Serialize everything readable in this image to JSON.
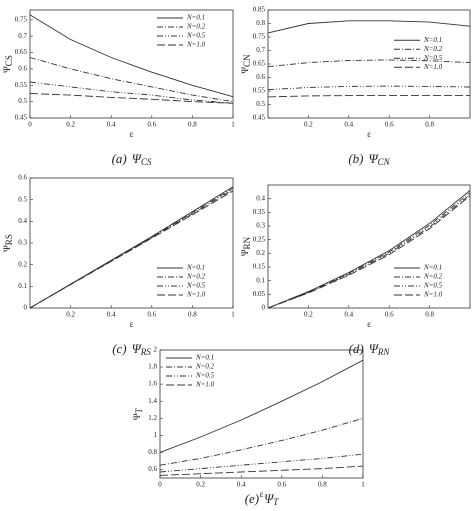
{
  "chart_data": [
    {
      "type": "line",
      "caption": "(a)",
      "caption_symbol": "Ψ",
      "caption_subscript": "CS",
      "xlabel": "ε",
      "ylabel": "Ψ",
      "ylabel_subscript": "CS",
      "x": [
        0,
        0.2,
        0.4,
        0.6,
        0.8,
        1
      ],
      "xlim": [
        0,
        1
      ],
      "xticks": [
        0,
        0.2,
        0.4,
        0.6,
        0.8,
        1
      ],
      "ylim": [
        0.45,
        0.78
      ],
      "yticks": [
        0.45,
        0.5,
        0.55,
        0.6,
        0.65,
        0.7,
        0.75
      ],
      "legend": "upper right",
      "series": [
        {
          "name": "N=0.1",
          "color": "#333333",
          "style": "solid",
          "values": [
            0.765,
            0.69,
            0.635,
            0.59,
            0.55,
            0.515
          ]
        },
        {
          "name": "N=0.2",
          "color": "#333333",
          "style": "dashdot",
          "values": [
            0.635,
            0.6,
            0.57,
            0.545,
            0.52,
            0.5
          ]
        },
        {
          "name": "N=0.5",
          "color": "#333333",
          "style": "dashdotdot",
          "values": [
            0.56,
            0.545,
            0.53,
            0.52,
            0.505,
            0.495
          ]
        },
        {
          "name": "N=1.0",
          "color": "#333333",
          "style": "dashed",
          "values": [
            0.525,
            0.52,
            0.513,
            0.507,
            0.5,
            0.495
          ]
        }
      ]
    },
    {
      "type": "line",
      "caption": "(b)",
      "caption_symbol": "Ψ",
      "caption_subscript": "CN",
      "xlabel": "ε",
      "ylabel": "Ψ",
      "ylabel_subscript": "CN",
      "x": [
        0,
        0.2,
        0.4,
        0.6,
        0.8,
        1
      ],
      "xlim": [
        0,
        1
      ],
      "xticks": [
        0.2,
        0.4,
        0.6,
        0.8
      ],
      "ylim": [
        0.45,
        0.85
      ],
      "yticks": [
        0.45,
        0.5,
        0.55,
        0.6,
        0.65,
        0.7,
        0.75,
        0.8,
        0.85
      ],
      "legend": "center right",
      "series": [
        {
          "name": "N=0.1",
          "color": "#333333",
          "style": "solid",
          "values": [
            0.765,
            0.8,
            0.81,
            0.81,
            0.805,
            0.79
          ]
        },
        {
          "name": "N=0.2",
          "color": "#333333",
          "style": "dashdot",
          "values": [
            0.64,
            0.655,
            0.663,
            0.665,
            0.662,
            0.655
          ]
        },
        {
          "name": "N=0.5",
          "color": "#333333",
          "style": "dashdotdot",
          "values": [
            0.555,
            0.563,
            0.567,
            0.568,
            0.567,
            0.565
          ]
        },
        {
          "name": "N=1.0",
          "color": "#333333",
          "style": "dashed",
          "values": [
            0.528,
            0.532,
            0.533,
            0.533,
            0.533,
            0.533
          ]
        }
      ]
    },
    {
      "type": "line",
      "caption": "(c)",
      "caption_symbol": "Ψ",
      "caption_subscript": "RS",
      "xlabel": "ε",
      "ylabel": "Ψ",
      "ylabel_subscript": "RS",
      "x": [
        0,
        0.2,
        0.4,
        0.6,
        0.8,
        1
      ],
      "xlim": [
        0,
        1
      ],
      "xticks": [
        0.2,
        0.4,
        0.6,
        0.8,
        1
      ],
      "ylim": [
        0,
        0.6
      ],
      "yticks": [
        0,
        0.1,
        0.2,
        0.3,
        0.4,
        0.5,
        0.6
      ],
      "legend": "lower right",
      "series": [
        {
          "name": "N=0.1",
          "color": "#333333",
          "style": "solid",
          "values": [
            0,
            0.11,
            0.22,
            0.33,
            0.445,
            0.56
          ]
        },
        {
          "name": "N=0.2",
          "color": "#333333",
          "style": "dashdot",
          "values": [
            0,
            0.11,
            0.218,
            0.327,
            0.44,
            0.553
          ]
        },
        {
          "name": "N=0.5",
          "color": "#333333",
          "style": "dashdotdot",
          "values": [
            0,
            0.109,
            0.217,
            0.325,
            0.435,
            0.547
          ]
        },
        {
          "name": "N=1.0",
          "color": "#333333",
          "style": "dashed",
          "values": [
            0,
            0.108,
            0.215,
            0.322,
            0.43,
            0.54
          ]
        }
      ]
    },
    {
      "type": "line",
      "caption": "(d)",
      "caption_symbol": "Ψ",
      "caption_subscript": "RN",
      "xlabel": "ε",
      "ylabel": "Ψ",
      "ylabel_subscript": "RN",
      "x": [
        0,
        0.2,
        0.4,
        0.6,
        0.8,
        1
      ],
      "xlim": [
        0,
        1
      ],
      "xticks": [
        0.2,
        0.4,
        0.6,
        0.8
      ],
      "ylim": [
        0,
        0.45
      ],
      "yticks": [
        0,
        0.05,
        0.1,
        0.15,
        0.2,
        0.25,
        0.3,
        0.35,
        0.4
      ],
      "legend": "lower right",
      "series": [
        {
          "name": "N=0.1",
          "color": "#333333",
          "style": "solid",
          "values": [
            0,
            0.06,
            0.13,
            0.21,
            0.31,
            0.43
          ]
        },
        {
          "name": "N=0.2",
          "color": "#333333",
          "style": "dashdot",
          "values": [
            0,
            0.058,
            0.127,
            0.205,
            0.303,
            0.422
          ]
        },
        {
          "name": "N=0.5",
          "color": "#333333",
          "style": "dashdotdot",
          "values": [
            0,
            0.056,
            0.123,
            0.2,
            0.296,
            0.415
          ]
        },
        {
          "name": "N=1.0",
          "color": "#333333",
          "style": "dashed",
          "values": [
            0,
            0.055,
            0.12,
            0.195,
            0.29,
            0.41
          ]
        }
      ]
    },
    {
      "type": "line",
      "caption": "(e)",
      "caption_symbol": "Ψ",
      "caption_subscript": "T",
      "xlabel": "ε",
      "ylabel": "Ψ",
      "ylabel_subscript": "T",
      "x": [
        0,
        0.2,
        0.4,
        0.6,
        0.8,
        1
      ],
      "xlim": [
        0,
        1
      ],
      "xticks": [
        0,
        0.2,
        0.4,
        0.6,
        0.8,
        1
      ],
      "ylim": [
        0.5,
        2
      ],
      "yticks": [
        0.6,
        0.8,
        1,
        1.2,
        1.4,
        1.6,
        1.8,
        2
      ],
      "legend": "upper left",
      "series": [
        {
          "name": "N=0.1",
          "color": "#333333",
          "style": "solid",
          "values": [
            0.8,
            0.98,
            1.18,
            1.4,
            1.63,
            1.88
          ]
        },
        {
          "name": "N=0.2",
          "color": "#333333",
          "style": "dashdot",
          "values": [
            0.65,
            0.73,
            0.83,
            0.94,
            1.06,
            1.2
          ]
        },
        {
          "name": "N=0.5",
          "color": "#333333",
          "style": "dashdotdot",
          "values": [
            0.57,
            0.61,
            0.65,
            0.69,
            0.73,
            0.78
          ]
        },
        {
          "name": "N=1.0",
          "color": "#333333",
          "style": "dashed",
          "values": [
            0.53,
            0.55,
            0.57,
            0.59,
            0.61,
            0.64
          ]
        }
      ]
    }
  ]
}
